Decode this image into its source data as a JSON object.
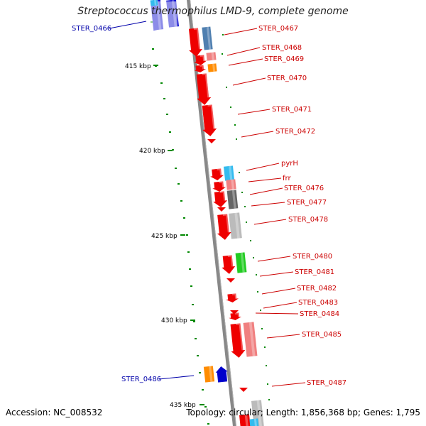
{
  "title": "Streptococcus thermophilus LMD-9, complete genome",
  "footer": {
    "accession": "Accession: NC_008532",
    "topology": "Topology: circular; Length: 1,856,368 bp; Genes: 1,795"
  },
  "colors": {
    "red": "#ee0000",
    "lightred": "#f08080",
    "blue": "#0000cc",
    "steelblue": "#4f7fb0",
    "skyblue": "#33bbee",
    "orange": "#ff8c00",
    "gray": "#666666",
    "lightgray": "#bbbbbb",
    "green": "#22cc22",
    "label_red": "#cc0000",
    "label_blue": "#0000aa",
    "tick": "#008800",
    "backbone": "#888888"
  },
  "kbp_labels": [
    {
      "text": "415 kbp"
    },
    {
      "text": "420 kbp"
    },
    {
      "text": "425 kbp"
    },
    {
      "text": "430 kbp"
    },
    {
      "text": "435 kbp"
    }
  ],
  "gene_labels": [
    {
      "text": "STER_0466",
      "color": "blue"
    },
    {
      "text": "STER_0467",
      "color": "red"
    },
    {
      "text": "STER_0468",
      "color": "red"
    },
    {
      "text": "STER_0469",
      "color": "red"
    },
    {
      "text": "STER_0470",
      "color": "red"
    },
    {
      "text": "STER_0471",
      "color": "red"
    },
    {
      "text": "STER_0472",
      "color": "red"
    },
    {
      "text": "pyrH",
      "color": "red"
    },
    {
      "text": "frr",
      "color": "red"
    },
    {
      "text": "STER_0476",
      "color": "red"
    },
    {
      "text": "STER_0477",
      "color": "red"
    },
    {
      "text": "STER_0478",
      "color": "red"
    },
    {
      "text": "STER_0480",
      "color": "red"
    },
    {
      "text": "STER_0481",
      "color": "red"
    },
    {
      "text": "STER_0482",
      "color": "red"
    },
    {
      "text": "STER_0483",
      "color": "red"
    },
    {
      "text": "STER_0484",
      "color": "red"
    },
    {
      "text": "STER_0485",
      "color": "red"
    },
    {
      "text": "STER_0486",
      "color": "blue"
    },
    {
      "text": "STER_0487",
      "color": "red"
    }
  ]
}
